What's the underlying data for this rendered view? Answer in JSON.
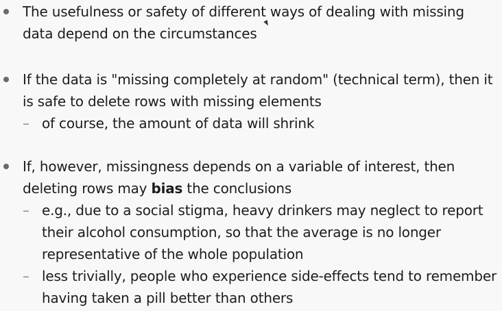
{
  "bullets": [
    {
      "text": "The usefulness or safety of different ways of dealing with missing data depend on the circumstances"
    },
    {
      "text": "If the data is \"missing completely at random\" (technical term), then it is safe to delete rows with missing elements",
      "subs": [
        "of course, the amount of data will shrink"
      ]
    },
    {
      "text_before": "If, however, missingness depends on a variable of interest, then deleting rows may ",
      "text_bold": "bias",
      "text_after": " the conclusions",
      "subs": [
        "e.g., due to a social stigma, heavy drinkers may neglect to report their alcohol consumption, so that the average is no longer representative of the whole population",
        "less trivially, people who experience side-effects tend to remember having taken a pill better than others"
      ]
    }
  ],
  "dash_symbol": "–"
}
